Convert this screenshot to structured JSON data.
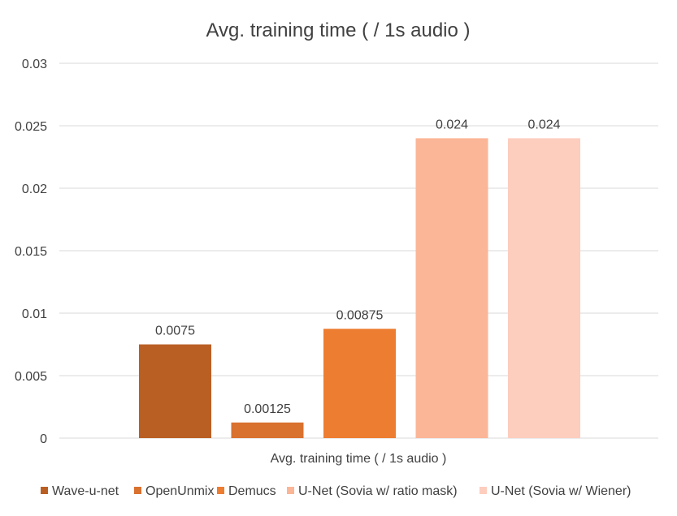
{
  "chart_data": {
    "type": "bar",
    "title": "Avg. training time ( / 1s audio )",
    "categories": [
      "Avg. training time ( / 1s audio )"
    ],
    "series": [
      {
        "name": "Wave-u-net",
        "values": [
          0.0075
        ],
        "color": "#BA5F24",
        "label": "0.0075"
      },
      {
        "name": "OpenUnmix",
        "values": [
          0.00125
        ],
        "color": "#D9712F",
        "label": "0.00125"
      },
      {
        "name": "Demucs",
        "values": [
          0.00875
        ],
        "color": "#ED7D31",
        "label": "0.00875"
      },
      {
        "name": "U-Net (Sovia w/ ratio mask)",
        "values": [
          0.024
        ],
        "color": "#FBB597",
        "label": "0.024"
      },
      {
        "name": "U-Net (Sovia w/ Wiener)",
        "values": [
          0.024
        ],
        "color": "#FDCDBE",
        "label": "0.024"
      }
    ],
    "ylim": [
      0,
      0.03
    ],
    "yticks": [
      "0",
      "0.005",
      "0.01",
      "0.015",
      "0.02",
      "0.025",
      "0.03"
    ],
    "ytick_values": [
      0,
      0.005,
      0.01,
      0.015,
      0.02,
      0.025,
      0.03
    ],
    "grid": true,
    "legend": "bottom",
    "gridline_color": "#D9D9D9",
    "text_color": "#404040"
  }
}
